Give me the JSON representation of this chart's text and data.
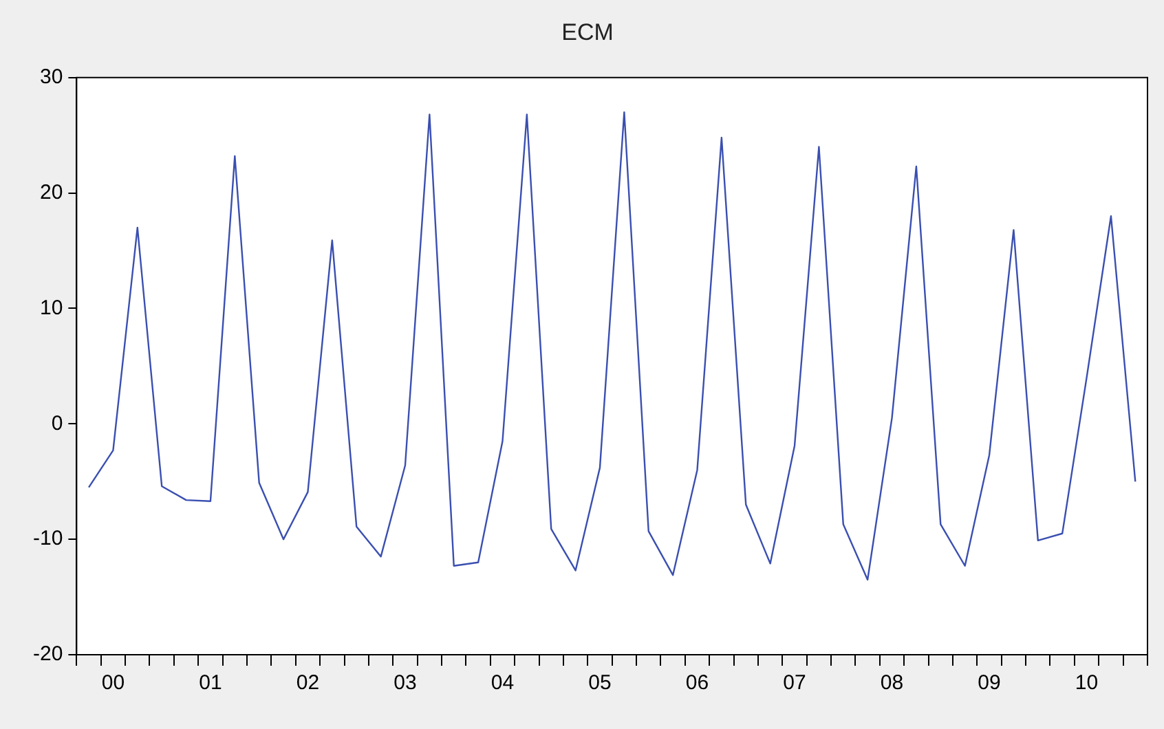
{
  "chart_data": {
    "type": "line",
    "title": "ECM",
    "marker": "none",
    "categories": [
      null,
      "00",
      null,
      null,
      null,
      "01",
      null,
      null,
      null,
      "02",
      null,
      null,
      null,
      "03",
      null,
      null,
      null,
      "04",
      null,
      null,
      null,
      "05",
      null,
      null,
      null,
      "06",
      null,
      null,
      null,
      "07",
      null,
      null,
      null,
      "08",
      null,
      null,
      null,
      "09",
      null,
      null,
      null,
      "10",
      null,
      null
    ],
    "series": [
      {
        "color": "#3a4fb0",
        "values": [
          -5.5,
          -2.3,
          17.0,
          -5.4,
          -6.6,
          -6.7,
          23.2,
          -5.1,
          -10.0,
          -5.9,
          15.9,
          -8.9,
          -11.5,
          -3.6,
          26.8,
          -12.3,
          -12.0,
          -1.5,
          26.8,
          -9.1,
          -12.7,
          -3.8,
          27.0,
          -9.3,
          -13.1,
          -4.0,
          24.8,
          -7.0,
          -12.1,
          -1.9,
          24.0,
          -8.7,
          -13.5,
          0.5,
          22.3,
          -8.7,
          -12.3,
          -2.7,
          16.8,
          -10.1,
          -9.5,
          4.0,
          18.0,
          -5.0
        ]
      }
    ],
    "ylim": [
      -20,
      30
    ],
    "yticks": [
      -20,
      -10,
      0,
      10,
      20,
      30
    ]
  }
}
